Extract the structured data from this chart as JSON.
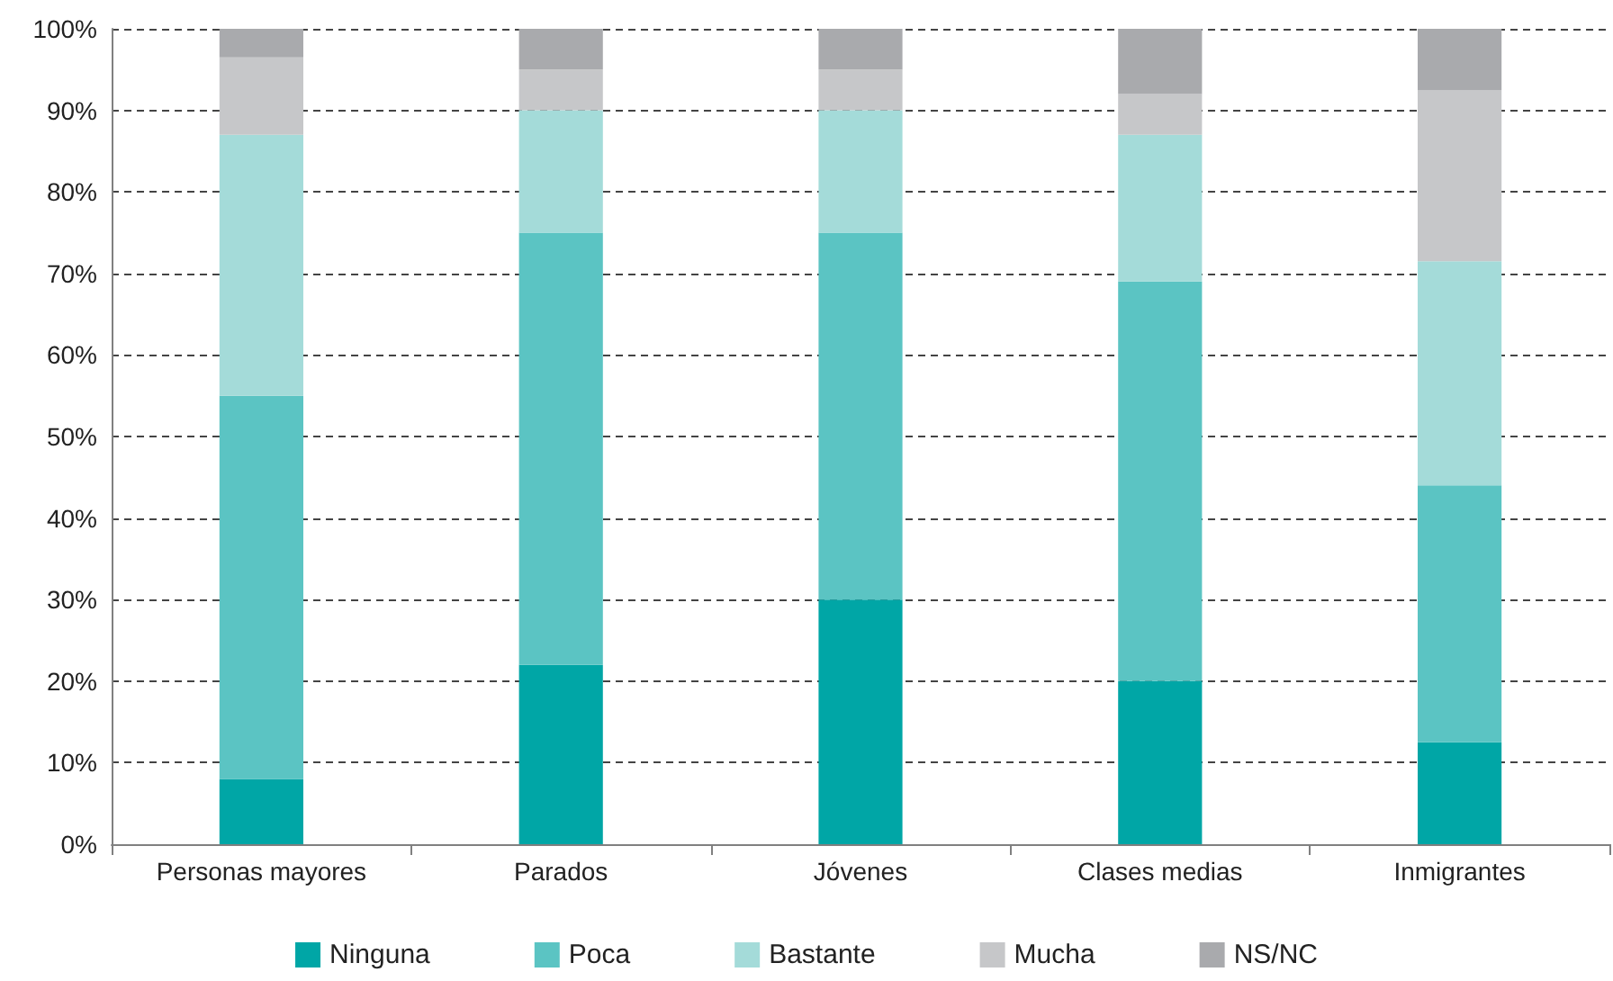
{
  "chart_data": {
    "type": "bar",
    "stacked": true,
    "categories": [
      "Personas mayores",
      "Parados",
      "Jóvenes",
      "Clases medias",
      "Inmigrantes"
    ],
    "series": [
      {
        "name": "Ninguna",
        "color": "#00a6a6",
        "values": [
          8,
          22,
          30,
          20,
          12.5
        ]
      },
      {
        "name": "Poca",
        "color": "#5bc4c3",
        "values": [
          47,
          53,
          45,
          49,
          31.5
        ]
      },
      {
        "name": "Bastante",
        "color": "#a4dbd9",
        "values": [
          32,
          15,
          15,
          18,
          27.5
        ]
      },
      {
        "name": "Mucha",
        "color": "#c6c7c9",
        "values": [
          9.5,
          5,
          5,
          5,
          21
        ]
      },
      {
        "name": "NS/NC",
        "color": "#a9aaad",
        "values": [
          3.5,
          5,
          5,
          8,
          7.5
        ]
      }
    ],
    "ylim": [
      0,
      100
    ],
    "yticks": [
      {
        "value": 0,
        "label": "0%"
      },
      {
        "value": 10,
        "label": "10%"
      },
      {
        "value": 20,
        "label": "20%"
      },
      {
        "value": 30,
        "label": "30%"
      },
      {
        "value": 40,
        "label": "40%"
      },
      {
        "value": 50,
        "label": "50%"
      },
      {
        "value": 60,
        "label": "60%"
      },
      {
        "value": 70,
        "label": "70%"
      },
      {
        "value": 80,
        "label": "80%"
      },
      {
        "value": 90,
        "label": "90%"
      },
      {
        "value": 100,
        "label": "100%"
      }
    ],
    "grid": "y",
    "legend": "bottom"
  }
}
